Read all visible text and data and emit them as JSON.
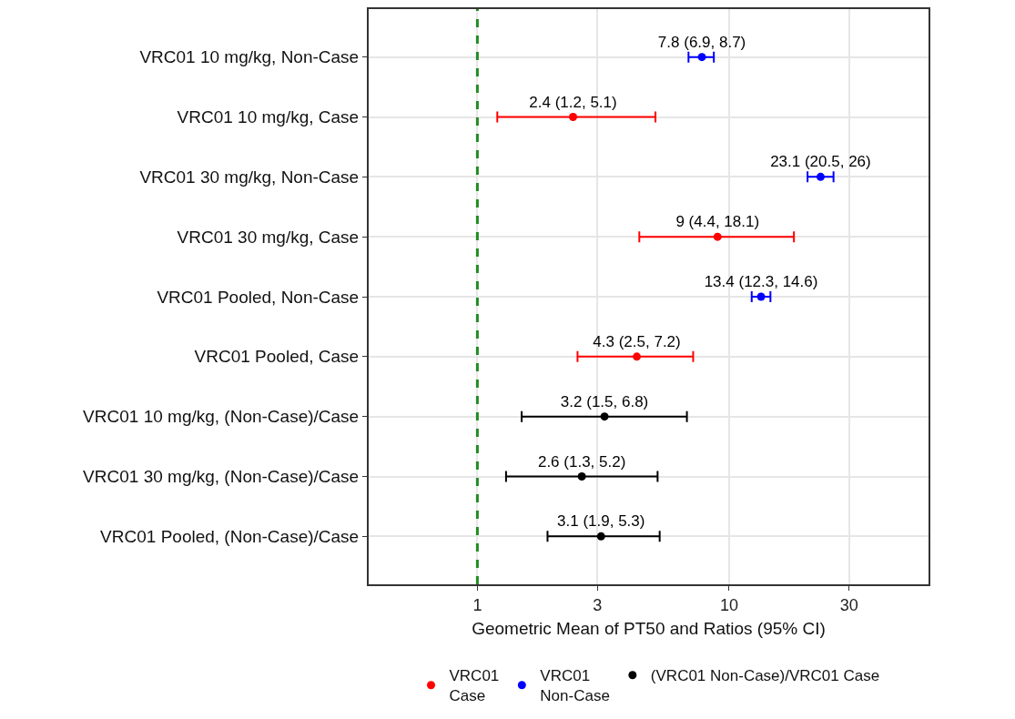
{
  "chart_data": {
    "type": "scatter",
    "orientation": "horizontal",
    "xlabel": "Geometric Mean of PT50 and Ratios (95% CI)",
    "categories": [
      "VRC01 10 mg/kg, Non-Case",
      "VRC01 10 mg/kg, Case",
      "VRC01 30 mg/kg, Non-Case",
      "VRC01 30 mg/kg, Case",
      "VRC01 Pooled, Non-Case",
      "VRC01 Pooled, Case",
      "VRC01 10 mg/kg, (Non-Case)/Case",
      "VRC01 30 mg/kg, (Non-Case)/Case",
      "VRC01 Pooled, (Non-Case)/Case"
    ],
    "series": [
      {
        "name": "VRC01\nCase",
        "color": "#ff0000",
        "values": [
          null,
          2.4,
          null,
          9,
          null,
          4.3,
          null,
          null,
          null
        ],
        "errors": [
          null,
          [
            1.2,
            5.1
          ],
          null,
          [
            4.4,
            18.1
          ],
          null,
          [
            2.5,
            7.2
          ],
          null,
          null,
          null
        ],
        "value_labels": [
          null,
          "2.4 (1.2, 5.1)",
          null,
          "9 (4.4, 18.1)",
          null,
          "4.3 (2.5, 7.2)",
          null,
          null,
          null
        ]
      },
      {
        "name": "VRC01\nNon-Case",
        "color": "#0000ff",
        "values": [
          7.8,
          null,
          23.1,
          null,
          13.4,
          null,
          null,
          null,
          null
        ],
        "errors": [
          [
            6.9,
            8.7
          ],
          null,
          [
            20.5,
            26
          ],
          null,
          [
            12.3,
            14.6
          ],
          null,
          null,
          null,
          null
        ],
        "value_labels": [
          "7.8 (6.9, 8.7)",
          null,
          "23.1 (20.5, 26)",
          null,
          "13.4 (12.3, 14.6)",
          null,
          null,
          null,
          null
        ]
      },
      {
        "name": "(VRC01 Non-Case)/VRC01 Case",
        "color": "#000000",
        "values": [
          null,
          null,
          null,
          null,
          null,
          null,
          3.2,
          2.6,
          3.1
        ],
        "errors": [
          null,
          null,
          null,
          null,
          null,
          null,
          [
            1.5,
            6.8
          ],
          [
            1.3,
            5.2
          ],
          [
            1.9,
            5.3
          ]
        ],
        "value_labels": [
          null,
          null,
          null,
          null,
          null,
          null,
          "3.2 (1.5, 6.8)",
          "2.6 (1.3, 5.2)",
          "3.1 (1.9, 5.3)"
        ]
      }
    ],
    "log": "x",
    "xlim": [
      0.37,
      62
    ],
    "xticks": [
      1,
      3,
      10,
      30
    ],
    "ref_lines": [
      {
        "axis": "x",
        "value": 1,
        "color": "#228b22",
        "line_style": "dashed"
      }
    ],
    "grid": true,
    "legend": "bottom",
    "marker": "circle"
  }
}
